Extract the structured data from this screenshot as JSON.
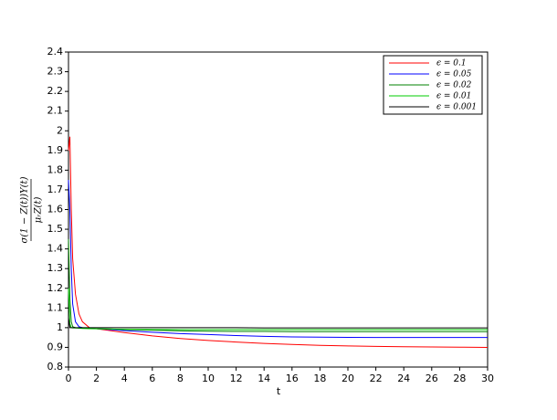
{
  "chart_data": {
    "type": "line",
    "xlabel": "t",
    "ylabel": {
      "numerator": "σ(1 − Z(t))Y(t)",
      "denominator": "μᵣZ(t)"
    },
    "x": [
      0,
      0.1,
      0.2,
      0.3,
      0.5,
      0.75,
      1,
      1.5,
      2,
      3,
      4,
      6,
      8,
      10,
      12,
      14,
      16,
      18,
      20,
      22,
      24,
      26,
      28,
      30
    ],
    "series": [
      {
        "name": "ϵ = 0.1",
        "color": "#ff0000",
        "values": [
          1.9,
          1.97,
          1.6,
          1.35,
          1.17,
          1.07,
          1.03,
          1.0,
          0.995,
          0.985,
          0.975,
          0.958,
          0.945,
          0.935,
          0.927,
          0.92,
          0.915,
          0.91,
          0.907,
          0.905,
          0.903,
          0.902,
          0.901,
          0.9
        ]
      },
      {
        "name": "ϵ = 0.05",
        "color": "#0000ff",
        "values": [
          1.75,
          1.6,
          1.3,
          1.12,
          1.03,
          1.005,
          1.0,
          0.998,
          0.995,
          0.99,
          0.985,
          0.977,
          0.97,
          0.965,
          0.96,
          0.956,
          0.953,
          0.952,
          0.951,
          0.95,
          0.95,
          0.95,
          0.95,
          0.95
        ]
      },
      {
        "name": "ϵ = 0.02",
        "color": "#008000",
        "values": [
          1.45,
          1.15,
          1.03,
          1.005,
          1.0,
          0.999,
          0.998,
          0.997,
          0.995,
          0.993,
          0.99,
          0.987,
          0.984,
          0.982,
          0.981,
          0.981,
          0.98,
          0.98,
          0.98,
          0.98,
          0.98,
          0.98,
          0.98,
          0.98
        ]
      },
      {
        "name": "ϵ = 0.01",
        "color": "#00cc00",
        "values": [
          1.2,
          1.02,
          1.0,
          0.999,
          0.998,
          0.997,
          0.996,
          0.995,
          0.994,
          0.993,
          0.992,
          0.991,
          0.99,
          0.99,
          0.99,
          0.99,
          0.99,
          0.99,
          0.99,
          0.99,
          0.99,
          0.99,
          0.99,
          0.99
        ]
      },
      {
        "name": "ϵ = 0.001",
        "color": "#000000",
        "values": [
          1.05,
          1.0,
          1.0,
          1.0,
          1.0,
          1.0,
          1.0,
          1.0,
          1.0,
          1.0,
          1.0,
          1.0,
          1.0,
          1.0,
          1.0,
          0.999,
          0.999,
          0.999,
          0.999,
          0.999,
          0.999,
          0.999,
          0.999,
          0.999
        ]
      }
    ],
    "xlim": [
      0,
      30
    ],
    "xticks": [
      0,
      2,
      4,
      6,
      8,
      10,
      12,
      14,
      16,
      18,
      20,
      22,
      24,
      26,
      28,
      30
    ],
    "ylim": [
      0.8,
      2.4
    ],
    "yticks": [
      0.8,
      0.9,
      1,
      1.1,
      1.2,
      1.3,
      1.4,
      1.5,
      1.6,
      1.7,
      1.8,
      1.9,
      2,
      2.1,
      2.2,
      2.3,
      2.4
    ],
    "grid": false,
    "legend": "upper right"
  }
}
